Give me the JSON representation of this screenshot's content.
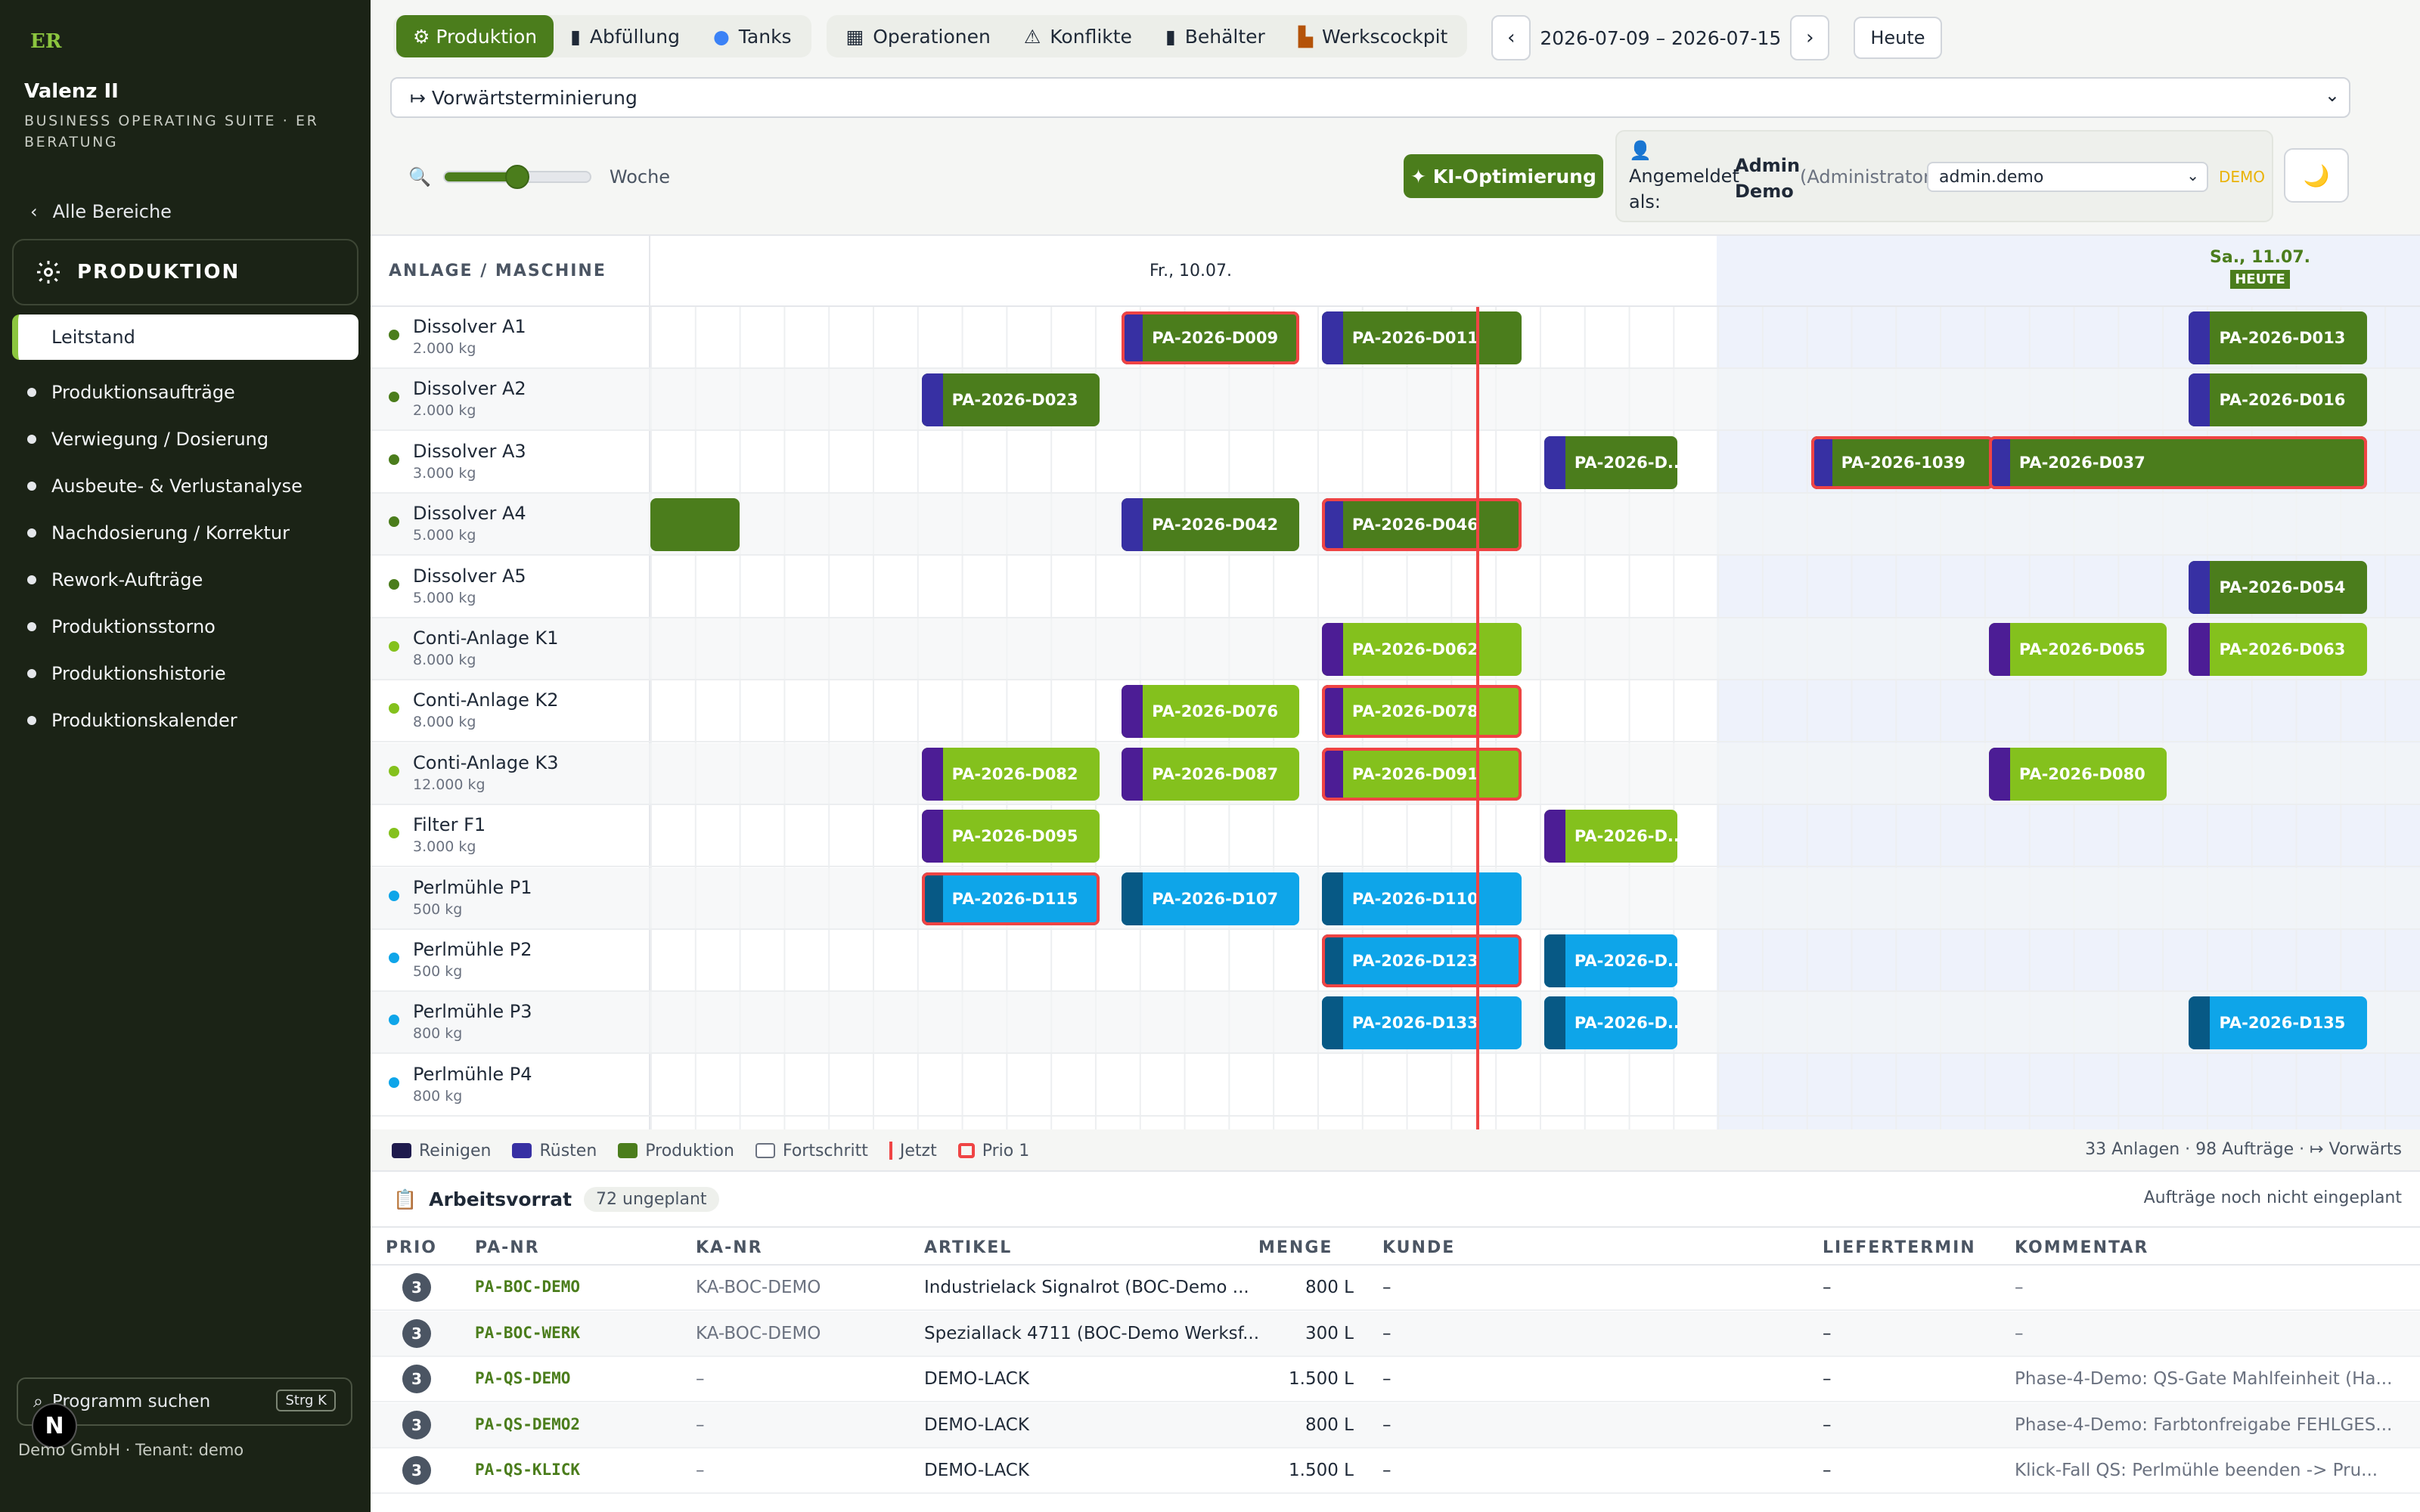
{
  "sidebar": {
    "logo": "ER",
    "app_name": "Valenz II",
    "suite": "BUSINESS OPERATING SUITE · ER BERATUNG",
    "back_label": "Alle Bereiche",
    "section_title": "PRODUKTION",
    "active_item": "Leitstand",
    "items": [
      "Produktionsaufträge",
      "Verwiegung / Dosierung",
      "Ausbeute- & Verlustanalyse",
      "Nachdosierung / Korrektur",
      "Rework-Aufträge",
      "Produktionsstorno",
      "Produktionshistorie",
      "Produktionskalender"
    ],
    "search_label": "Programm suchen",
    "search_shortcut": "Strg K",
    "badge": "N",
    "footer": "Demo GmbH · Tenant: demo"
  },
  "tabs": {
    "group1": [
      {
        "label": "⚙ Produktion",
        "active": true
      },
      {
        "label": "Abfüllung",
        "icon": "bottle-icon"
      },
      {
        "label": "Tanks",
        "icon": "tank-icon"
      }
    ],
    "group2": [
      {
        "label": "Operationen",
        "icon": "grid-icon"
      },
      {
        "label": "Konflikte",
        "icon": "warning-icon"
      },
      {
        "label": "Behälter",
        "icon": "container-icon"
      },
      {
        "label": "Werkscockpit",
        "icon": "factory-icon"
      }
    ],
    "prev": "‹",
    "next": "›",
    "date_range": "2026-07-09 – 2026-07-15",
    "today_btn": "Heute"
  },
  "mode_select": "↦ Vorwärtsterminierung",
  "zoom": {
    "label": "Woche",
    "level": 0.5
  },
  "ki_button": "✦ KI-Optimierung",
  "user": {
    "logged_in": "Angemeldet als:",
    "name": "Admin Demo",
    "role": "(Administrator)",
    "select_value": "admin.demo",
    "demo_badge": "DEMO",
    "theme_icon": "🌙"
  },
  "gantt": {
    "header_label": "ANLAGE / MASCHINE",
    "day1": "Fr., 10.07.",
    "day2": "Sa., 11.07.",
    "today_badge": "HEUTE",
    "rows": [
      {
        "name": "Dissolver A1",
        "cap": "2.000 kg",
        "kind": "dark"
      },
      {
        "name": "Dissolver A2",
        "cap": "2.000 kg",
        "kind": "dark"
      },
      {
        "name": "Dissolver A3",
        "cap": "3.000 kg",
        "kind": "dark"
      },
      {
        "name": "Dissolver A4",
        "cap": "5.000 kg",
        "kind": "dark"
      },
      {
        "name": "Dissolver A5",
        "cap": "5.000 kg",
        "kind": "dark"
      },
      {
        "name": "Conti-Anlage K1",
        "cap": "8.000 kg",
        "kind": "light"
      },
      {
        "name": "Conti-Anlage K2",
        "cap": "8.000 kg",
        "kind": "light"
      },
      {
        "name": "Conti-Anlage K3",
        "cap": "12.000 kg",
        "kind": "light"
      },
      {
        "name": "Filter F1",
        "cap": "3.000 kg",
        "kind": "light"
      },
      {
        "name": "Perlmühle P1",
        "cap": "500 kg",
        "kind": "blue"
      },
      {
        "name": "Perlmühle P2",
        "cap": "500 kg",
        "kind": "blue"
      },
      {
        "name": "Perlmühle P3",
        "cap": "800 kg",
        "kind": "blue"
      },
      {
        "name": "Perlmühle P4",
        "cap": "800 kg",
        "kind": "blue"
      }
    ],
    "bars": [
      {
        "row": 0,
        "slot": 10.6,
        "len": 4,
        "label": "PA-2026-D009",
        "prio1": true
      },
      {
        "row": 0,
        "slot": 15.1,
        "len": 4.5,
        "label": "PA-2026-D011"
      },
      {
        "row": 0,
        "slot": 34.6,
        "len": 4,
        "label": "PA-2026-D013"
      },
      {
        "row": 1,
        "slot": 6.1,
        "len": 4,
        "label": "PA-2026-D023"
      },
      {
        "row": 1,
        "slot": 34.6,
        "len": 4,
        "label": "PA-2026-D016"
      },
      {
        "row": 2,
        "slot": 20.1,
        "len": 3,
        "label": "PA-2026-D..."
      },
      {
        "row": 2,
        "slot": 26.1,
        "len": 4.1,
        "label": "PA-2026-1039",
        "prio1": true
      },
      {
        "row": 2,
        "slot": 30.1,
        "len": 8.5,
        "label": "PA-2026-D037",
        "prio1": true
      },
      {
        "row": 3,
        "slot": 0,
        "len": 2,
        "label": "",
        "norust": true
      },
      {
        "row": 3,
        "slot": 10.6,
        "len": 4,
        "label": "PA-2026-D042"
      },
      {
        "row": 3,
        "slot": 15.1,
        "len": 4.5,
        "label": "PA-2026-D046",
        "prio1": true
      },
      {
        "row": 4,
        "slot": 34.6,
        "len": 4,
        "label": "PA-2026-D054"
      },
      {
        "row": 5,
        "slot": 15.1,
        "len": 4.5,
        "label": "PA-2026-D062"
      },
      {
        "row": 5,
        "slot": 30.1,
        "len": 4,
        "label": "PA-2026-D065"
      },
      {
        "row": 5,
        "slot": 34.6,
        "len": 4,
        "label": "PA-2026-D063"
      },
      {
        "row": 6,
        "slot": 10.6,
        "len": 4,
        "label": "PA-2026-D076"
      },
      {
        "row": 6,
        "slot": 15.1,
        "len": 4.5,
        "label": "PA-2026-D078",
        "prio1": true
      },
      {
        "row": 7,
        "slot": 6.1,
        "len": 4,
        "label": "PA-2026-D082"
      },
      {
        "row": 7,
        "slot": 10.6,
        "len": 4,
        "label": "PA-2026-D087"
      },
      {
        "row": 7,
        "slot": 15.1,
        "len": 4.5,
        "label": "PA-2026-D091",
        "prio1": true
      },
      {
        "row": 7,
        "slot": 30.1,
        "len": 4,
        "label": "PA-2026-D080"
      },
      {
        "row": 8,
        "slot": 6.1,
        "len": 4,
        "label": "PA-2026-D095"
      },
      {
        "row": 8,
        "slot": 20.1,
        "len": 3,
        "label": "PA-2026-D..."
      },
      {
        "row": 9,
        "slot": 6.1,
        "len": 4,
        "label": "PA-2026-D115",
        "prio1": true
      },
      {
        "row": 9,
        "slot": 10.6,
        "len": 4,
        "label": "PA-2026-D107"
      },
      {
        "row": 9,
        "slot": 15.1,
        "len": 4.5,
        "label": "PA-2026-D110"
      },
      {
        "row": 10,
        "slot": 15.1,
        "len": 4.5,
        "label": "PA-2026-D123",
        "prio1": true
      },
      {
        "row": 10,
        "slot": 20.1,
        "len": 3,
        "label": "PA-2026-D..."
      },
      {
        "row": 11,
        "slot": 15.1,
        "len": 4.5,
        "label": "PA-2026-D133"
      },
      {
        "row": 11,
        "slot": 20.1,
        "len": 3,
        "label": "PA-2026-D..."
      },
      {
        "row": 11,
        "slot": 34.6,
        "len": 4,
        "label": "PA-2026-D135"
      }
    ]
  },
  "legend": {
    "items": [
      {
        "label": "Reinigen",
        "color": "#1f1b4d"
      },
      {
        "label": "Rüsten",
        "color": "#3730a3"
      },
      {
        "label": "Produktion",
        "color": "#4b7d1c"
      },
      {
        "label": "Fortschritt",
        "color": "outline"
      },
      {
        "label": "Jetzt",
        "color": "#ef4444"
      },
      {
        "label": "Prio 1",
        "color": "prio"
      }
    ],
    "summary": "33 Anlagen · 98 Aufträge · ↦ Vorwärts"
  },
  "backlog": {
    "title": "Arbeitsvorrat",
    "badge": "72 ungeplant",
    "hint": "Aufträge noch nicht eingeplant",
    "columns": [
      "PRIO",
      "PA-NR",
      "KA-NR",
      "ARTIKEL",
      "MENGE",
      "KUNDE",
      "LIEFERTERMIN",
      "KOMMENTAR"
    ],
    "rows": [
      {
        "prio": "3",
        "pa": "PA-BOC-DEMO",
        "ka": "KA-BOC-DEMO",
        "artikel": "Industrielack Signalrot (BOC-Demo ...",
        "menge": "800 L",
        "kunde": "–",
        "termin": "–",
        "kommentar": "–"
      },
      {
        "prio": "3",
        "pa": "PA-BOC-WERK",
        "ka": "KA-BOC-DEMO",
        "artikel": "Speziallack 4711 (BOC-Demo Werksf...",
        "menge": "300 L",
        "kunde": "–",
        "termin": "–",
        "kommentar": "–"
      },
      {
        "prio": "3",
        "pa": "PA-QS-DEMO",
        "ka": "–",
        "artikel": "DEMO-LACK",
        "menge": "1.500 L",
        "kunde": "–",
        "termin": "–",
        "kommentar": "Phase-4-Demo: QS-Gate Mahlfeinheit (Ha..."
      },
      {
        "prio": "3",
        "pa": "PA-QS-DEMO2",
        "ka": "–",
        "artikel": "DEMO-LACK",
        "menge": "800 L",
        "kunde": "–",
        "termin": "–",
        "kommentar": "Phase-4-Demo: Farbtonfreigabe FEHLGES..."
      },
      {
        "prio": "3",
        "pa": "PA-QS-KLICK",
        "ka": "–",
        "artikel": "DEMO-LACK",
        "menge": "1.500 L",
        "kunde": "–",
        "termin": "–",
        "kommentar": "Klick-Fall QS: Perlmühle beenden -> Pru..."
      }
    ]
  }
}
